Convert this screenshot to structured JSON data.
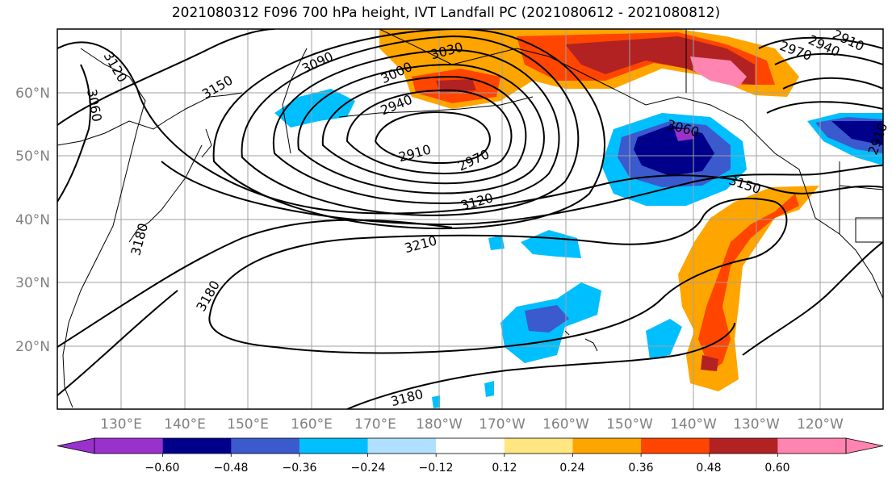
{
  "title": "2021080312 F096 700 hPa height, IVT Landfall PC (2021080612 - 2021080812)",
  "map": {
    "lon_ticks": [
      "130°E",
      "140°E",
      "150°E",
      "160°E",
      "170°E",
      "180°W",
      "170°W",
      "160°W",
      "150°W",
      "140°W",
      "130°W",
      "120°W"
    ],
    "lat_ticks": [
      "60°N",
      "50°N",
      "40°N",
      "30°N",
      "20°N"
    ],
    "contour_labels": [
      "3120",
      "3060",
      "3150",
      "3090",
      "3000",
      "3030",
      "2940",
      "2910",
      "2970",
      "3060",
      "3150",
      "3120",
      "3210",
      "3180",
      "3180",
      "3180",
      "2910",
      "2970",
      "2940",
      "2910",
      "3060"
    ],
    "fill_colors": {
      "neg_extreme": "#9932cc",
      "neg_060": "#00008b",
      "neg_048": "#3a5acd",
      "neg_036": "#00bfff",
      "neg_024": "#b0e0ff",
      "pos_012": "#ffe680",
      "pos_024": "#ffa500",
      "pos_036": "#ff4500",
      "pos_048": "#b22222",
      "pos_extreme": "#ff85b0"
    }
  },
  "colorbar": {
    "labels": [
      "−0.60",
      "−0.48",
      "−0.36",
      "−0.24",
      "−0.12",
      "0.12",
      "0.24",
      "0.36",
      "0.48",
      "0.60"
    ],
    "colors": [
      "#9932cc",
      "#00008b",
      "#3a5acd",
      "#00bfff",
      "#b0e0ff",
      "#ffffff",
      "#ffe680",
      "#ffa500",
      "#ff4500",
      "#b22222",
      "#ff85b0"
    ]
  }
}
